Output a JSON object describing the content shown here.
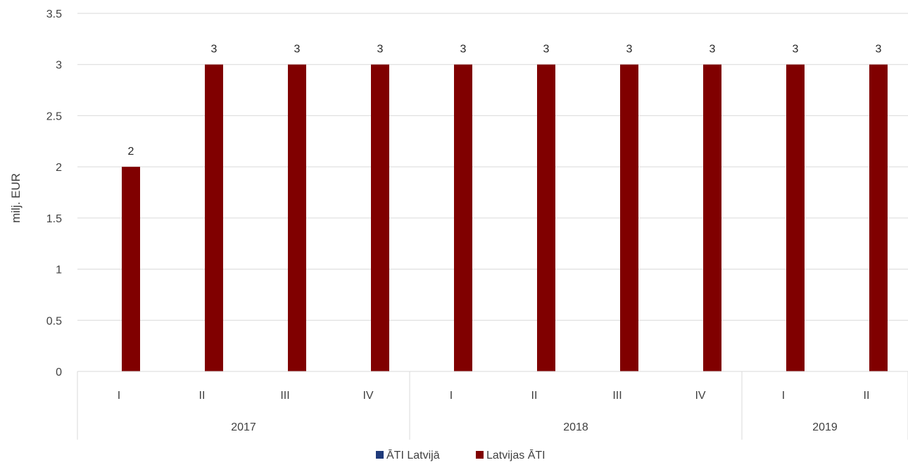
{
  "chart_data": {
    "type": "bar",
    "ylabel": "milj. EUR",
    "ylim": [
      0,
      3.5
    ],
    "yticks": [
      "0",
      "0.5",
      "1",
      "1.5",
      "2",
      "2.5",
      "3",
      "3.5"
    ],
    "categories": [
      "I",
      "II",
      "III",
      "IV",
      "I",
      "II",
      "III",
      "IV",
      "I",
      "II"
    ],
    "groups": [
      {
        "label": "2017",
        "count": 4
      },
      {
        "label": "2018",
        "count": 4
      },
      {
        "label": "2019",
        "count": 2
      }
    ],
    "series": [
      {
        "name": "ĀTI Latvijā",
        "color": "#1f3a7a",
        "values": [
          0,
          0,
          0,
          0,
          0,
          0,
          0,
          0,
          0,
          0
        ]
      },
      {
        "name": "Latvijas ĀTI",
        "color": "#800000",
        "values": [
          2,
          3,
          3,
          3,
          3,
          3,
          3,
          3,
          3,
          3
        ]
      }
    ],
    "data_labels": [
      "2",
      "3",
      "3",
      "3",
      "3",
      "3",
      "3",
      "3",
      "3",
      "3"
    ],
    "grid": true,
    "legend_position": "bottom"
  }
}
